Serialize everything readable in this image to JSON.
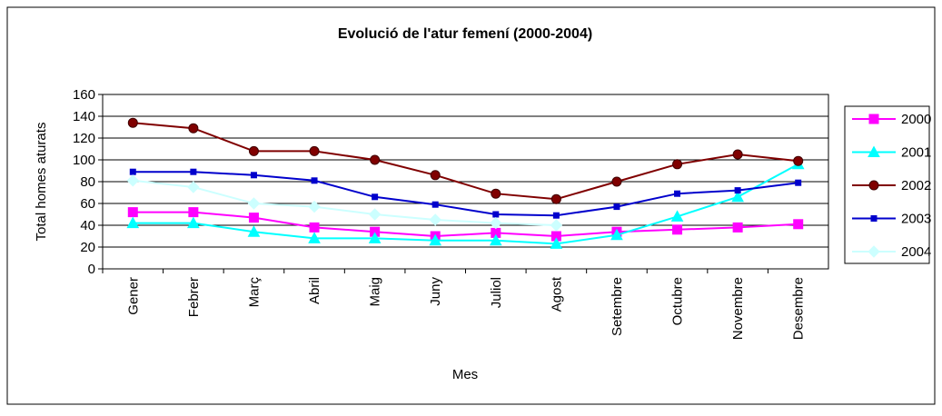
{
  "chart_data": {
    "type": "line",
    "title": "Evolució de l'atur femení (2000-2004)",
    "x_label": "Mes",
    "y_label": "Total homes aturats",
    "categories": [
      "Gener",
      "Febrer",
      "Març",
      "Abril",
      "Maig",
      "Juny",
      "Juliol",
      "Agost",
      "Setembre",
      "Octubre",
      "Novembre",
      "Desembre"
    ],
    "series": [
      {
        "name": "2000",
        "color": "#ff00ff",
        "marker": "square",
        "values": [
          52,
          52,
          47,
          38,
          34,
          30,
          33,
          30,
          34,
          36,
          38,
          41
        ]
      },
      {
        "name": "2001",
        "color": "#00ffff",
        "marker": "triangle",
        "values": [
          42,
          42,
          34,
          28,
          28,
          26,
          26,
          23,
          31,
          48,
          66,
          96
        ]
      },
      {
        "name": "2002",
        "color": "#800000",
        "marker": "circle",
        "values": [
          134,
          129,
          108,
          108,
          100,
          86,
          69,
          64,
          80,
          96,
          105,
          99
        ]
      },
      {
        "name": "2003",
        "color": "#0000cc",
        "marker": "small-square",
        "values": [
          89,
          89,
          86,
          81,
          66,
          59,
          50,
          49,
          57,
          69,
          72,
          79
        ]
      },
      {
        "name": "2004",
        "color": "#ccffff",
        "marker": "diamond",
        "values": [
          81,
          75,
          60,
          57,
          50,
          45,
          42,
          40,
          null,
          null,
          null,
          null
        ]
      }
    ],
    "ylim": [
      0,
      160
    ],
    "yticks": [
      0,
      20,
      40,
      60,
      80,
      100,
      120,
      140,
      160
    ],
    "grid": true,
    "legend": "right"
  }
}
